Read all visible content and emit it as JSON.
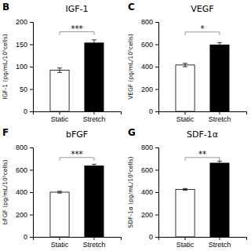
{
  "chart_data": [
    {
      "type": "bar",
      "label": "B",
      "title": "IGF-1",
      "ylabel": "IGF-1 (pg/mL/10⁵cells)",
      "categories": [
        "Static",
        "Stretch"
      ],
      "values": [
        92,
        153
      ],
      "errors": [
        5,
        7
      ],
      "colors": [
        "white",
        "black"
      ],
      "ylim": [
        0,
        200
      ],
      "yticks": [
        0,
        50,
        100,
        150,
        200
      ],
      "annotations": [
        {
          "text": "***",
          "y": 178,
          "x1": "Static",
          "x2": "Stretch"
        }
      ]
    },
    {
      "type": "bar",
      "label": "C",
      "title": "VEGF",
      "ylabel": "VEGF (pg/mL/10⁵cells)",
      "categories": [
        "Static",
        "Stretch"
      ],
      "values": [
        415,
        595
      ],
      "errors": [
        15,
        20
      ],
      "colors": [
        "white",
        "black"
      ],
      "ylim": [
        0,
        800
      ],
      "yticks": [
        0,
        200,
        400,
        600,
        800
      ],
      "annotations": [
        {
          "text": "*",
          "y": 710,
          "x1": "Static",
          "x2": "Stretch"
        }
      ]
    },
    {
      "type": "bar",
      "label": "F",
      "title": "bFGF",
      "ylabel": "bFGF (pg/mL/10⁵cells)",
      "categories": [
        "Static",
        "Stretch"
      ],
      "values": [
        400,
        635
      ],
      "errors": [
        8,
        15
      ],
      "colors": [
        "white",
        "black"
      ],
      "ylim": [
        0,
        800
      ],
      "yticks": [
        0,
        200,
        400,
        600,
        800
      ],
      "annotations": [
        {
          "text": "***",
          "y": 710,
          "x1": "Static",
          "x2": "Stretch"
        }
      ]
    },
    {
      "type": "bar",
      "label": "G",
      "title": "SDF-1α",
      "ylabel": "SDF-1α (pg/mL/10⁵cells)",
      "categories": [
        "Static",
        "Stretch"
      ],
      "values": [
        425,
        660
      ],
      "errors": [
        8,
        18
      ],
      "colors": [
        "white",
        "black"
      ],
      "ylim": [
        0,
        800
      ],
      "yticks": [
        0,
        200,
        400,
        600,
        800
      ],
      "annotations": [
        {
          "text": "**",
          "y": 710,
          "x1": "Static",
          "x2": "Stretch"
        }
      ]
    }
  ]
}
